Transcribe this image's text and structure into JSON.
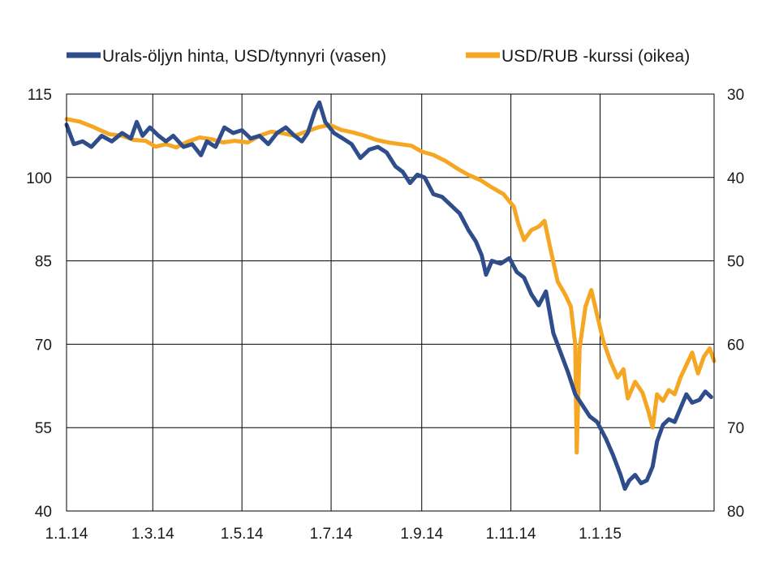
{
  "chart_data": {
    "type": "line",
    "title": "",
    "xlabel": "",
    "ylabel": "",
    "x_start": "2014-01-01",
    "x_end": "2015-03-20",
    "x_tick_labels": [
      "1.1.14",
      "1.3.14",
      "1.5.14",
      "1.7.14",
      "1.9.14",
      "1.11.14",
      "1.1.15"
    ],
    "x_tick_dates": [
      "2014-01-01",
      "2014-03-01",
      "2014-05-01",
      "2014-07-01",
      "2014-09-01",
      "2014-11-01",
      "2015-01-01"
    ],
    "y_left_ticks": [
      "115",
      "100",
      "85",
      "70",
      "55",
      "40"
    ],
    "y_left_lim": [
      40,
      115
    ],
    "y_right_ticks": [
      "30",
      "40",
      "50",
      "60",
      "70",
      "80"
    ],
    "y_right_lim": [
      30,
      80
    ],
    "y_right_inverted": true,
    "grid": true,
    "legend_position": "top",
    "series": [
      {
        "name": "Urals-öljyn hinta, USD/tynnyri (vasen)",
        "axis": "left",
        "color": "#2E4D8A",
        "points": [
          [
            "2014-01-01",
            109.5
          ],
          [
            "2014-01-06",
            106.0
          ],
          [
            "2014-01-12",
            106.5
          ],
          [
            "2014-01-18",
            105.5
          ],
          [
            "2014-01-25",
            107.5
          ],
          [
            "2014-02-01",
            106.5
          ],
          [
            "2014-02-08",
            108.0
          ],
          [
            "2014-02-14",
            107.0
          ],
          [
            "2014-02-18",
            110.0
          ],
          [
            "2014-02-22",
            107.5
          ],
          [
            "2014-02-27",
            109.0
          ],
          [
            "2014-03-05",
            107.5
          ],
          [
            "2014-03-10",
            106.5
          ],
          [
            "2014-03-15",
            107.5
          ],
          [
            "2014-03-22",
            105.5
          ],
          [
            "2014-03-28",
            106.0
          ],
          [
            "2014-04-03",
            104.0
          ],
          [
            "2014-04-07",
            106.5
          ],
          [
            "2014-04-13",
            105.5
          ],
          [
            "2014-04-19",
            109.0
          ],
          [
            "2014-04-25",
            108.0
          ],
          [
            "2014-05-01",
            108.5
          ],
          [
            "2014-05-07",
            107.0
          ],
          [
            "2014-05-13",
            107.5
          ],
          [
            "2014-05-19",
            106.0
          ],
          [
            "2014-05-25",
            108.0
          ],
          [
            "2014-05-31",
            109.0
          ],
          [
            "2014-06-06",
            107.5
          ],
          [
            "2014-06-11",
            106.5
          ],
          [
            "2014-06-15",
            108.0
          ],
          [
            "2014-06-20",
            112.0
          ],
          [
            "2014-06-23",
            113.5
          ],
          [
            "2014-06-27",
            110.0
          ],
          [
            "2014-07-03",
            108.0
          ],
          [
            "2014-07-09",
            107.0
          ],
          [
            "2014-07-15",
            106.0
          ],
          [
            "2014-07-21",
            103.5
          ],
          [
            "2014-07-27",
            105.0
          ],
          [
            "2014-08-02",
            105.5
          ],
          [
            "2014-08-08",
            104.5
          ],
          [
            "2014-08-14",
            102.0
          ],
          [
            "2014-08-19",
            101.0
          ],
          [
            "2014-08-24",
            99.0
          ],
          [
            "2014-08-29",
            100.5
          ],
          [
            "2014-09-03",
            100.0
          ],
          [
            "2014-09-09",
            97.0
          ],
          [
            "2014-09-15",
            96.5
          ],
          [
            "2014-09-21",
            95.0
          ],
          [
            "2014-09-27",
            93.5
          ],
          [
            "2014-10-03",
            90.5
          ],
          [
            "2014-10-08",
            88.5
          ],
          [
            "2014-10-12",
            86.0
          ],
          [
            "2014-10-15",
            82.5
          ],
          [
            "2014-10-19",
            85.0
          ],
          [
            "2014-10-25",
            84.5
          ],
          [
            "2014-10-31",
            85.5
          ],
          [
            "2014-11-05",
            83.0
          ],
          [
            "2014-11-10",
            82.0
          ],
          [
            "2014-11-15",
            79.0
          ],
          [
            "2014-11-20",
            77.0
          ],
          [
            "2014-11-25",
            79.5
          ],
          [
            "2014-11-30",
            72.0
          ],
          [
            "2014-12-05",
            68.5
          ],
          [
            "2014-12-10",
            65.0
          ],
          [
            "2014-12-15",
            61.0
          ],
          [
            "2014-12-20",
            59.0
          ],
          [
            "2014-12-25",
            57.0
          ],
          [
            "2014-12-30",
            56.0
          ],
          [
            "2015-01-05",
            53.0
          ],
          [
            "2015-01-10",
            50.0
          ],
          [
            "2015-01-15",
            46.5
          ],
          [
            "2015-01-18",
            44.0
          ],
          [
            "2015-01-21",
            45.5
          ],
          [
            "2015-01-25",
            46.5
          ],
          [
            "2015-01-29",
            45.0
          ],
          [
            "2015-02-02",
            45.5
          ],
          [
            "2015-02-06",
            48.0
          ],
          [
            "2015-02-09",
            52.5
          ],
          [
            "2015-02-13",
            55.5
          ],
          [
            "2015-02-17",
            56.5
          ],
          [
            "2015-02-21",
            56.0
          ],
          [
            "2015-02-25",
            58.5
          ],
          [
            "2015-03-01",
            61.0
          ],
          [
            "2015-03-05",
            59.5
          ],
          [
            "2015-03-10",
            60.0
          ],
          [
            "2015-03-14",
            61.5
          ],
          [
            "2015-03-18",
            60.5
          ]
        ]
      },
      {
        "name": "USD/RUB -kurssi (oikea)",
        "axis": "right",
        "color": "#F5A623",
        "points": [
          [
            "2014-01-01",
            33.0
          ],
          [
            "2014-01-10",
            33.3
          ],
          [
            "2014-01-20",
            34.0
          ],
          [
            "2014-01-30",
            34.8
          ],
          [
            "2014-02-08",
            35.0
          ],
          [
            "2014-02-16",
            35.5
          ],
          [
            "2014-02-24",
            35.6
          ],
          [
            "2014-03-03",
            36.3
          ],
          [
            "2014-03-10",
            36.0
          ],
          [
            "2014-03-17",
            36.4
          ],
          [
            "2014-03-25",
            35.7
          ],
          [
            "2014-04-02",
            35.2
          ],
          [
            "2014-04-10",
            35.4
          ],
          [
            "2014-04-18",
            35.8
          ],
          [
            "2014-04-26",
            35.6
          ],
          [
            "2014-05-05",
            35.8
          ],
          [
            "2014-05-13",
            35.0
          ],
          [
            "2014-05-21",
            34.5
          ],
          [
            "2014-05-29",
            34.7
          ],
          [
            "2014-06-06",
            35.0
          ],
          [
            "2014-06-14",
            34.5
          ],
          [
            "2014-06-22",
            34.0
          ],
          [
            "2014-06-30",
            33.7
          ],
          [
            "2014-07-08",
            34.3
          ],
          [
            "2014-07-16",
            34.6
          ],
          [
            "2014-07-24",
            35.0
          ],
          [
            "2014-08-01",
            35.5
          ],
          [
            "2014-08-09",
            35.8
          ],
          [
            "2014-08-17",
            36.0
          ],
          [
            "2014-08-25",
            36.2
          ],
          [
            "2014-09-01",
            36.9
          ],
          [
            "2014-09-09",
            37.3
          ],
          [
            "2014-09-17",
            38.0
          ],
          [
            "2014-09-25",
            38.9
          ],
          [
            "2014-10-03",
            39.7
          ],
          [
            "2014-10-11",
            40.3
          ],
          [
            "2014-10-19",
            41.2
          ],
          [
            "2014-10-27",
            42.0
          ],
          [
            "2014-11-03",
            43.5
          ],
          [
            "2014-11-06",
            45.5
          ],
          [
            "2014-11-10",
            47.5
          ],
          [
            "2014-11-15",
            46.3
          ],
          [
            "2014-11-20",
            45.9
          ],
          [
            "2014-11-24",
            45.2
          ],
          [
            "2014-11-28",
            48.5
          ],
          [
            "2014-12-03",
            52.5
          ],
          [
            "2014-12-08",
            54.0
          ],
          [
            "2014-12-12",
            55.5
          ],
          [
            "2014-12-15",
            60.0
          ],
          [
            "2014-12-16",
            73.0
          ],
          [
            "2014-12-18",
            60.5
          ],
          [
            "2014-12-22",
            55.5
          ],
          [
            "2014-12-26",
            53.5
          ],
          [
            "2014-12-30",
            56.5
          ],
          [
            "2015-01-03",
            59.5
          ],
          [
            "2015-01-08",
            62.0
          ],
          [
            "2015-01-13",
            64.0
          ],
          [
            "2015-01-17",
            63.0
          ],
          [
            "2015-01-20",
            66.5
          ],
          [
            "2015-01-25",
            64.5
          ],
          [
            "2015-01-30",
            65.8
          ],
          [
            "2015-02-03",
            68.0
          ],
          [
            "2015-02-06",
            70.0
          ],
          [
            "2015-02-09",
            66.0
          ],
          [
            "2015-02-13",
            66.8
          ],
          [
            "2015-02-17",
            65.5
          ],
          [
            "2015-02-21",
            66.0
          ],
          [
            "2015-02-25",
            64.0
          ],
          [
            "2015-03-01",
            62.5
          ],
          [
            "2015-03-05",
            61.0
          ],
          [
            "2015-03-09",
            63.5
          ],
          [
            "2015-03-13",
            61.5
          ],
          [
            "2015-03-17",
            60.5
          ],
          [
            "2015-03-20",
            62.0
          ]
        ]
      }
    ]
  }
}
